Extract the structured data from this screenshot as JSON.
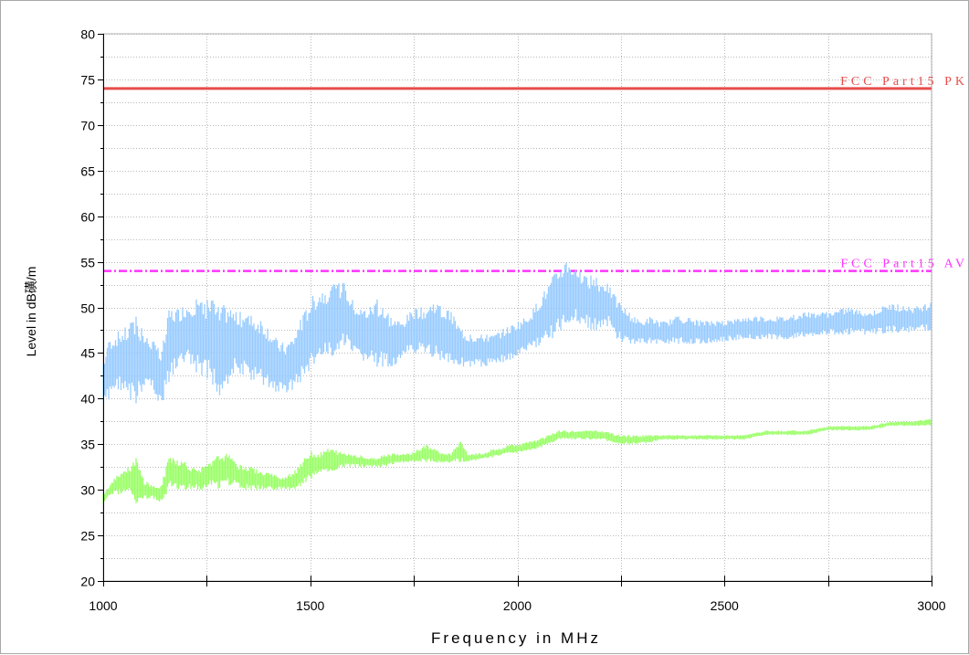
{
  "chart_data": {
    "type": "line",
    "xlabel": "Frequency in MHz",
    "ylabel": "Level in dB磺/m",
    "xlim": [
      1000,
      3000
    ],
    "ylim": [
      20,
      80
    ],
    "x_ticks": [
      1000,
      1500,
      2000,
      2500,
      3000
    ],
    "y_ticks": [
      20,
      25,
      30,
      35,
      40,
      45,
      50,
      55,
      60,
      65,
      70,
      75,
      80
    ],
    "grid": true,
    "limit_lines": [
      {
        "label": "FCC Part15 PK",
        "value": 74,
        "color": "#e84d4d",
        "style": "solid"
      },
      {
        "label": "FCC Part15 AV",
        "value": 54,
        "color": "#ff33ff",
        "style": "dashdot"
      }
    ],
    "series": [
      {
        "color": "#99ccff",
        "x": [
          1000,
          1020,
          1040,
          1060,
          1080,
          1100,
          1120,
          1140,
          1160,
          1180,
          1200,
          1220,
          1240,
          1260,
          1280,
          1300,
          1320,
          1340,
          1360,
          1380,
          1400,
          1420,
          1440,
          1460,
          1480,
          1500,
          1520,
          1540,
          1560,
          1580,
          1600,
          1620,
          1640,
          1660,
          1680,
          1700,
          1720,
          1740,
          1760,
          1780,
          1800,
          1820,
          1840,
          1860,
          1880,
          1900,
          1920,
          1940,
          1960,
          1980,
          2000,
          2020,
          2040,
          2060,
          2080,
          2100,
          2120,
          2140,
          2160,
          2180,
          2200,
          2220,
          2240,
          2260,
          2280,
          2300,
          2320,
          2340,
          2360,
          2380,
          2400,
          2450,
          2500,
          2550,
          2600,
          2650,
          2700,
          2750,
          2800,
          2850,
          2900,
          2950,
          3000
        ],
        "min": [
          38.8,
          40.5,
          41.0,
          40.0,
          39.5,
          41.5,
          41.0,
          39.0,
          42.0,
          43.0,
          44.0,
          43.0,
          42.5,
          42.0,
          40.0,
          41.5,
          43.0,
          42.5,
          42.0,
          41.5,
          41.0,
          40.5,
          40.5,
          41.0,
          42.0,
          43.0,
          44.0,
          44.0,
          45.0,
          46.0,
          44.5,
          44.0,
          44.0,
          43.5,
          43.5,
          43.5,
          44.0,
          45.0,
          45.0,
          44.5,
          44.5,
          44.0,
          44.0,
          43.5,
          43.5,
          43.5,
          43.5,
          43.8,
          44.0,
          44.0,
          44.5,
          45.0,
          45.5,
          46.0,
          46.5,
          47.0,
          48.0,
          48.5,
          48.0,
          47.5,
          47.5,
          48.0,
          46.5,
          46.0,
          46.0,
          46.0,
          46.0,
          46.0,
          46.0,
          46.0,
          46.0,
          46.0,
          46.3,
          46.5,
          46.5,
          46.5,
          46.8,
          47.0,
          47.0,
          47.0,
          47.2,
          47.3,
          47.5
        ],
        "max": [
          44.5,
          47.0,
          47.5,
          48.0,
          49.0,
          47.0,
          46.5,
          45.0,
          50.0,
          50.0,
          50.5,
          51.0,
          50.5,
          51.0,
          50.0,
          50.5,
          49.5,
          49.5,
          49.0,
          49.0,
          48.0,
          46.5,
          46.0,
          47.0,
          49.0,
          51.0,
          52.0,
          52.5,
          52.5,
          52.8,
          51.0,
          50.0,
          50.0,
          51.0,
          49.5,
          49.0,
          48.5,
          49.5,
          50.0,
          50.0,
          51.0,
          50.0,
          49.5,
          48.0,
          47.0,
          47.0,
          47.0,
          47.0,
          47.5,
          48.0,
          48.5,
          49.0,
          50.0,
          51.5,
          53.0,
          54.5,
          55.5,
          54.5,
          53.5,
          53.5,
          53.0,
          52.5,
          51.0,
          50.0,
          49.0,
          48.5,
          49.0,
          48.5,
          48.5,
          49.0,
          49.0,
          48.5,
          48.5,
          49.0,
          49.0,
          49.0,
          49.5,
          49.5,
          50.0,
          49.5,
          50.5,
          50.0,
          50.5
        ]
      },
      {
        "color": "#99ff66",
        "x": [
          1000,
          1020,
          1040,
          1060,
          1080,
          1100,
          1120,
          1140,
          1160,
          1180,
          1200,
          1220,
          1240,
          1260,
          1280,
          1300,
          1320,
          1340,
          1360,
          1380,
          1400,
          1420,
          1440,
          1460,
          1480,
          1500,
          1520,
          1540,
          1560,
          1580,
          1600,
          1620,
          1640,
          1660,
          1680,
          1700,
          1720,
          1740,
          1760,
          1780,
          1800,
          1820,
          1840,
          1860,
          1880,
          1900,
          1920,
          1940,
          1960,
          1980,
          2000,
          2050,
          2100,
          2150,
          2200,
          2250,
          2300,
          2350,
          2400,
          2450,
          2500,
          2550,
          2600,
          2650,
          2700,
          2750,
          2800,
          2850,
          2900,
          2950,
          3000
        ],
        "min": [
          28.5,
          29.5,
          29.5,
          30.0,
          28.5,
          29.0,
          29.0,
          28.5,
          30.0,
          30.0,
          30.0,
          30.0,
          30.0,
          30.5,
          30.0,
          30.5,
          30.5,
          30.0,
          30.0,
          30.0,
          30.0,
          30.0,
          30.0,
          30.0,
          30.5,
          31.0,
          31.5,
          32.0,
          32.0,
          32.5,
          32.5,
          32.5,
          32.5,
          32.5,
          32.5,
          32.8,
          33.0,
          33.0,
          33.0,
          33.0,
          33.0,
          33.0,
          33.0,
          33.0,
          33.0,
          33.2,
          33.5,
          33.5,
          33.8,
          34.0,
          34.0,
          34.5,
          35.5,
          35.5,
          35.5,
          35.0,
          35.0,
          35.5,
          35.5,
          35.5,
          35.5,
          35.5,
          36.0,
          36.0,
          36.0,
          36.5,
          36.5,
          36.5,
          37.0,
          37.0,
          37.0
        ],
        "max": [
          29.5,
          31.0,
          32.0,
          32.5,
          33.5,
          31.0,
          30.5,
          30.5,
          34.0,
          33.5,
          33.0,
          32.5,
          32.5,
          33.0,
          34.0,
          34.0,
          33.0,
          32.5,
          32.5,
          32.0,
          32.0,
          31.5,
          31.5,
          32.0,
          33.0,
          34.5,
          34.0,
          34.5,
          34.5,
          34.0,
          34.0,
          33.8,
          33.5,
          33.5,
          34.0,
          34.0,
          34.0,
          34.0,
          34.5,
          35.0,
          34.5,
          34.0,
          34.0,
          35.5,
          34.0,
          34.0,
          34.0,
          34.5,
          34.5,
          35.0,
          35.0,
          35.5,
          36.5,
          36.5,
          36.5,
          36.0,
          36.0,
          36.0,
          36.0,
          36.0,
          36.0,
          36.0,
          36.5,
          36.5,
          36.5,
          37.0,
          37.0,
          37.0,
          37.5,
          37.5,
          37.8
        ]
      }
    ]
  }
}
